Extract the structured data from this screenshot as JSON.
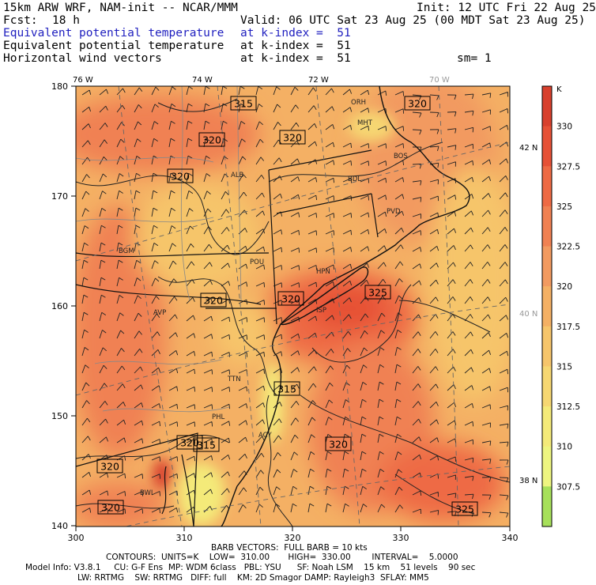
{
  "header": {
    "model": "15km ARW WRF, NAM-init -- NCAR/MMM",
    "init": "Init: 12 UTC Fri 22 Aug 25",
    "fcst_label": "Fcst:",
    "fcst_value": "18 h",
    "valid": "Valid: 06 UTC Sat 23 Aug 25 (00 MDT Sat 23 Aug 25)",
    "fields": [
      {
        "name": "Equivalent potential temperature",
        "level": "at k-index =  51"
      },
      {
        "name": "Equivalent potential temperature",
        "level": "at k-index =  51"
      },
      {
        "name": "Horizontal wind vectors",
        "level": "at k-index =  51"
      }
    ],
    "smoothing": "sm= 1"
  },
  "map": {
    "lon_labels": [
      "76 W",
      "74 W",
      "72 W",
      "70 W"
    ],
    "lat_labels": [
      "42 N",
      "40 N",
      "38 N"
    ],
    "x_ticks": [
      "300",
      "310",
      "320",
      "330",
      "340"
    ],
    "y_ticks": [
      "180",
      "170",
      "160",
      "150",
      "140"
    ],
    "city_labels": [
      "ORH",
      "MHT",
      "BOS",
      "ALB",
      "BDL",
      "PVD",
      "BGM",
      "POU",
      "HPN",
      "ISP",
      "AVP",
      "TTN",
      "PHL",
      "ACY",
      "BWI"
    ],
    "contour_labels": [
      "315",
      "320",
      "320",
      "320",
      "320",
      "320",
      "320",
      "320",
      "325",
      "315",
      "320",
      "320",
      "315",
      "325",
      "320"
    ]
  },
  "colorbar": {
    "unit": "K",
    "labels": [
      "330",
      "327.5",
      "325",
      "322.5",
      "320",
      "317.5",
      "315",
      "312.5",
      "310",
      "307.5"
    ],
    "colors": [
      "#d8402d",
      "#e65136",
      "#ee6a44",
      "#f08152",
      "#f29a60",
      "#f4b064",
      "#f6c56b",
      "#f6d772",
      "#f4ea79",
      "#eef580",
      "#a7e05a"
    ]
  },
  "footer": {
    "barbs": "BARB VECTORS:  FULL BARB = 10 kts",
    "contours": "CONTOURS:  UNITS=K    LOW=  310.00       HIGH=  330.00        INTERVAL=    5.0000",
    "model_info_1": "Model Info: V3.8.1     CU: G-F Ens  MP: WDM 6class   PBL: YSU      SF: Noah LSM    15 km    51 levels    90 sec",
    "model_info_2": "LW: RRTMG    SW: RRTMG   DIFF: full    KM: 2D Smagor DAMP: Rayleigh3  SFLAY: MM5"
  }
}
